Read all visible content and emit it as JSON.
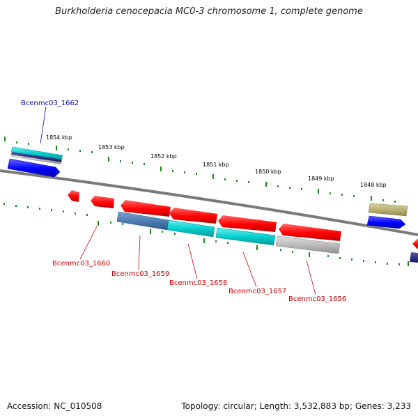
{
  "title": "Burkholderia cenocepacia MC0-3 chromosome 1, complete genome",
  "kbp_labels": [
    "1854 kbp",
    "1853 kbp",
    "1852 kbp",
    "1851 kbp",
    "1850 kbp",
    "1849 kbp",
    "1848 kbp"
  ],
  "genes": {
    "top": "Bcenmc03_1662",
    "g1660": "Bcenmc03_1660",
    "g1659": "Bcenmc03_1659",
    "g1658": "Bcenmc03_1658",
    "g1657": "Bcenmc03_1657",
    "g1656": "Bcenmc03_1656"
  },
  "footer": {
    "accession": "Accession: NC_010508",
    "info": "Topology: circular; Length: 3,532,883 bp; Genes: 3,233"
  },
  "colors": {
    "red": "#ff0000",
    "blue": "#0000ff",
    "cyan": "#00cccc",
    "steelblue": "#4a7bb0",
    "gray": "#b8b8b8",
    "olive": "#b8b070",
    "navy": "#000080",
    "tick_green": "#1a8a1a",
    "label_red": "#cc0000",
    "label_blue": "#0000aa"
  }
}
